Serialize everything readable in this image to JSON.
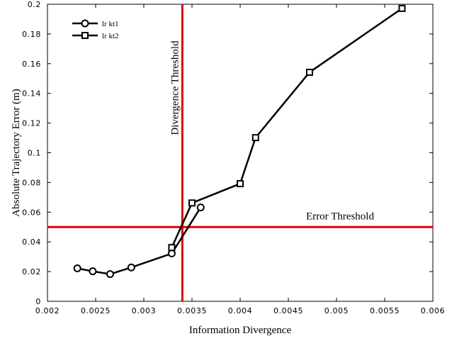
{
  "chart_data": {
    "type": "line",
    "xlabel": "Information Divergence",
    "ylabel": "Absolute Trajectory Error (m)",
    "xlim": [
      0.002,
      0.006
    ],
    "ylim": [
      0,
      0.2
    ],
    "xticks": [
      "0.002",
      "0.0025",
      "0.003",
      "0.0035",
      "0.004",
      "0.0045",
      "0.005",
      "0.0055",
      "0.006"
    ],
    "xtick_values": [
      0.002,
      0.0025,
      0.003,
      0.0035,
      0.004,
      0.0045,
      0.005,
      0.0055,
      0.006
    ],
    "yticks": [
      "0",
      "0.02",
      "0.04",
      "0.06",
      "0.08",
      "0.1",
      "0.12",
      "0.14",
      "0.16",
      "0.18",
      "0.2"
    ],
    "ytick_values": [
      0,
      0.02,
      0.04,
      0.06,
      0.08,
      0.1,
      0.12,
      0.14,
      0.16,
      0.18,
      0.2
    ],
    "grid": false,
    "legend_position": "top-left",
    "series": [
      {
        "name": "lr kt1",
        "marker": "circle",
        "color": "#000000",
        "x": [
          0.00231,
          0.00247,
          0.00265,
          0.00287,
          0.00329,
          0.00359
        ],
        "y": [
          0.0222,
          0.0202,
          0.0183,
          0.0228,
          0.0322,
          0.0632
        ]
      },
      {
        "name": "lr kt2",
        "marker": "square",
        "color": "#000000",
        "x": [
          0.00329,
          0.0035,
          0.004,
          0.00416,
          0.00472,
          0.00568
        ],
        "y": [
          0.0362,
          0.0662,
          0.0792,
          0.1102,
          0.1542,
          0.1972
        ]
      }
    ],
    "thresholds": [
      {
        "orientation": "vertical",
        "value": 0.0034,
        "label": "Divergence Threshold",
        "color": "#e00000"
      },
      {
        "orientation": "horizontal",
        "value": 0.05,
        "label": "Error Threshold",
        "color": "#e00000"
      }
    ]
  }
}
